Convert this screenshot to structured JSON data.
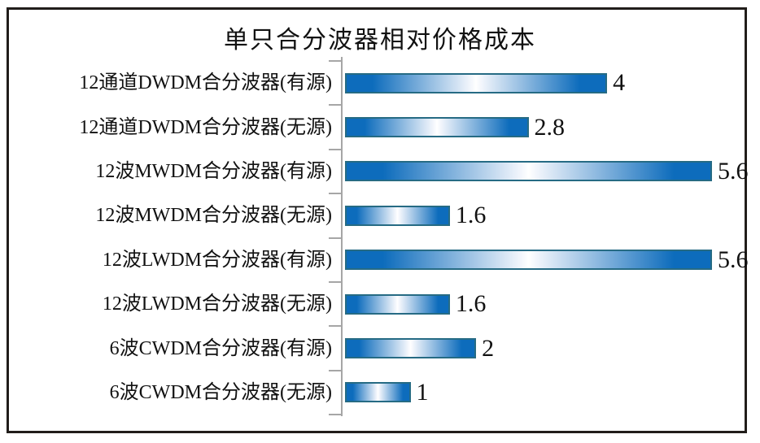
{
  "chart_data": {
    "type": "bar",
    "orientation": "horizontal",
    "title": "单只合分波器相对价格成本",
    "categories": [
      "12通道DWDM合分波器(有源)",
      "12通道DWDM合分波器(无源)",
      "12波MWDM合分波器(有源)",
      "12波MWDM合分波器(无源)",
      "12波LWDM合分波器(有源)",
      "12波LWDM合分波器(无源)",
      "6波CWDM合分波器(有源)",
      "6波CWDM合分波器(无源)"
    ],
    "values": [
      4,
      2.8,
      5.6,
      1.6,
      5.6,
      1.6,
      2,
      1
    ],
    "value_labels": [
      "4",
      "2.8",
      "5.6",
      "1.6",
      "5.6",
      "1.6",
      "2",
      "1"
    ],
    "xlabel": "",
    "ylabel": "",
    "xlim": [
      0,
      5.6
    ],
    "grid": false,
    "legend": "none",
    "data_labels": "end-of-bar",
    "colors": {
      "bar_fill_edge": "#0d6cbc",
      "bar_fill_center": "#ffffff",
      "bar_border": "#266b84",
      "axis": "#a6a6a6",
      "frame_border": "#211d1a",
      "text": "#111111",
      "background": "#ffffff"
    }
  }
}
